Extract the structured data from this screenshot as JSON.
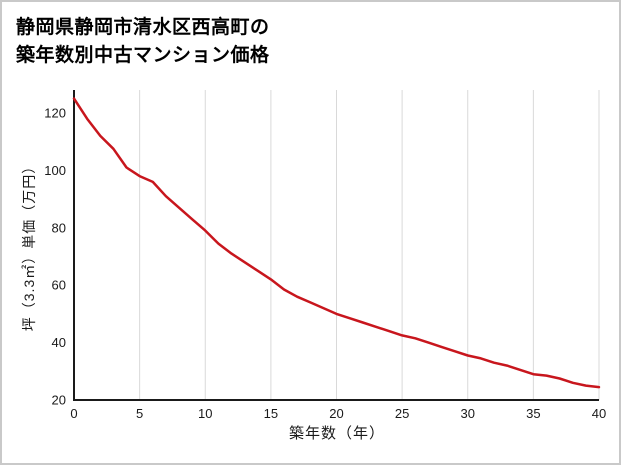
{
  "title": {
    "line1": "静岡県静岡市清水区西高町の",
    "line2": "築年数別中古マンション価格"
  },
  "chart_data": {
    "type": "line",
    "title": "静岡県静岡市清水区西高町の築年数別中古マンション価格",
    "xlabel": "築年数（年）",
    "ylabel": "坪（3.3㎡）単価（万円）",
    "x": [
      0,
      1,
      2,
      3,
      4,
      5,
      6,
      7,
      8,
      9,
      10,
      11,
      12,
      13,
      14,
      15,
      16,
      17,
      18,
      19,
      20,
      21,
      22,
      23,
      24,
      25,
      26,
      27,
      28,
      29,
      30,
      31,
      32,
      33,
      34,
      35,
      36,
      37,
      38,
      39,
      40
    ],
    "values": [
      125,
      118,
      112,
      107.5,
      101,
      98,
      96,
      91,
      87,
      83,
      79,
      74.5,
      71,
      68,
      65,
      62,
      58.5,
      56,
      54,
      52,
      50,
      48.5,
      47,
      45.5,
      44,
      42.5,
      41.5,
      40,
      38.5,
      37,
      35.5,
      34.5,
      33,
      32,
      30.5,
      29,
      28.5,
      27.5,
      26,
      25,
      24.5
    ],
    "xlim": [
      0,
      40
    ],
    "ylim": [
      20,
      128
    ],
    "xticks": [
      0,
      5,
      10,
      15,
      20,
      25,
      30,
      35,
      40
    ],
    "yticks": [
      20,
      40,
      60,
      80,
      100,
      120
    ],
    "grid": "vertical-only",
    "legend": "none",
    "line_color": "#c8161d",
    "axis_color": "#1a1a1a",
    "grid_color": "#d9d9d9",
    "tick_color": "#1a1a1a"
  }
}
